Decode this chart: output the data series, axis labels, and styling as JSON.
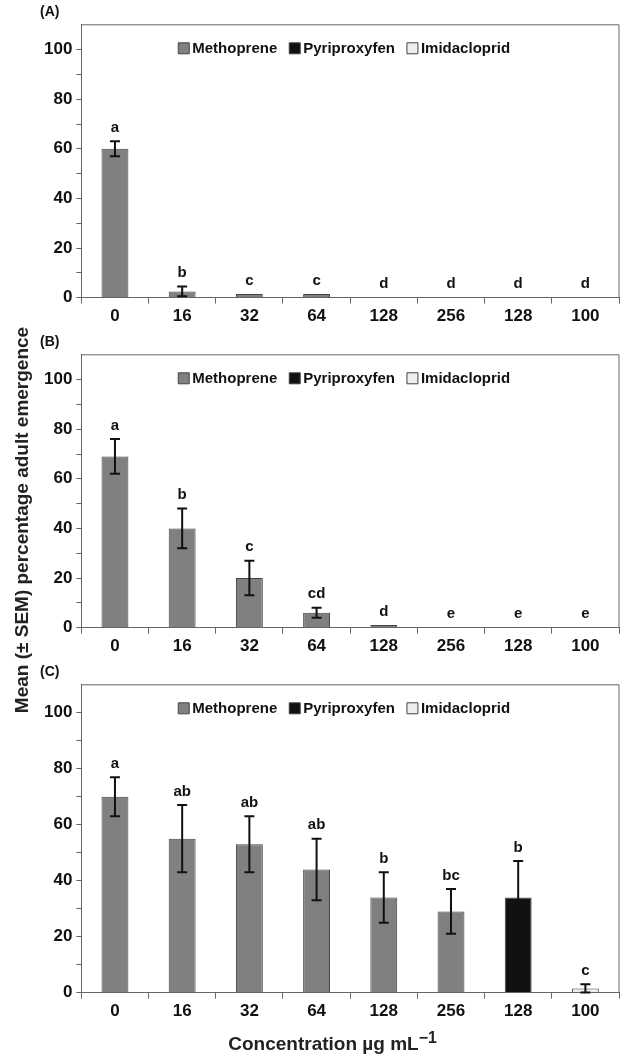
{
  "chart_data": [
    {
      "type": "bar",
      "title": "(A)",
      "categories": [
        "0",
        "16",
        "32",
        "64",
        "128",
        "256",
        "128",
        "100"
      ],
      "series": [
        {
          "name": "Methoprene",
          "color": "#808080",
          "values": [
            60,
            2.5,
            1.5,
            1.5,
            0,
            0,
            null,
            null
          ],
          "errors": [
            3,
            2,
            null,
            null,
            null,
            null,
            null,
            null
          ],
          "value_labels": [
            "a",
            "b",
            "c",
            "c",
            "d",
            "d",
            null,
            null
          ]
        },
        {
          "name": "Pyriproxyfen",
          "color": "#111111",
          "values": [
            null,
            null,
            null,
            null,
            null,
            null,
            0,
            null
          ],
          "value_labels": [
            null,
            null,
            null,
            null,
            null,
            null,
            "d",
            null
          ]
        },
        {
          "name": "Imidacloprid",
          "color": "#eeeeee",
          "values": [
            null,
            null,
            null,
            null,
            null,
            null,
            null,
            0
          ],
          "value_labels": [
            null,
            null,
            null,
            null,
            null,
            null,
            null,
            "d"
          ]
        }
      ],
      "ylim": [
        0,
        110
      ],
      "yticks": [
        0,
        {
          "value": 10,
          "label": null
        },
        20,
        {
          "value": 30,
          "label": null
        },
        40,
        {
          "value": 50,
          "label": null
        },
        60,
        {
          "value": 70,
          "label": null
        },
        80,
        {
          "value": 90,
          "label": null
        },
        100
      ],
      "grid": false,
      "legend": "top"
    },
    {
      "type": "bar",
      "title": "(B)",
      "ylabel": "Mean (± SEM) percentage adult emergence",
      "categories": [
        "0",
        "16",
        "32",
        "64",
        "128",
        "256",
        "128",
        "100"
      ],
      "series": [
        {
          "name": "Methoprene",
          "color": "#808080",
          "values": [
            69,
            40,
            20,
            6,
            1,
            0,
            null,
            null
          ],
          "errors": [
            7,
            8,
            7,
            2,
            null,
            null,
            null,
            null
          ],
          "value_labels": [
            "a",
            "b",
            "c",
            "cd",
            "d",
            "e",
            null,
            null
          ]
        },
        {
          "name": "Pyriproxyfen",
          "color": "#111111",
          "values": [
            null,
            null,
            null,
            null,
            null,
            null,
            0,
            null
          ],
          "value_labels": [
            null,
            null,
            null,
            null,
            null,
            null,
            "e",
            null
          ]
        },
        {
          "name": "Imidacloprid",
          "color": "#eeeeee",
          "values": [
            null,
            null,
            null,
            null,
            null,
            null,
            null,
            0
          ],
          "value_labels": [
            null,
            null,
            null,
            null,
            null,
            null,
            null,
            "e"
          ]
        }
      ],
      "ylim": [
        0,
        110
      ],
      "yticks": [
        0,
        {
          "value": 10,
          "label": null
        },
        20,
        {
          "value": 30,
          "label": null
        },
        40,
        {
          "value": 50,
          "label": null
        },
        60,
        {
          "value": 70,
          "label": null
        },
        80,
        {
          "value": 90,
          "label": null
        },
        100
      ],
      "grid": false,
      "legend": "top"
    },
    {
      "type": "bar",
      "title": "(C)",
      "xlabel": "Concentration µg mL$^{−1}$",
      "categories": [
        "0",
        "16",
        "32",
        "64",
        "128",
        "256",
        "128",
        "100"
      ],
      "series": [
        {
          "name": "Methoprene",
          "color": "#808080",
          "values": [
            70,
            55,
            53,
            44,
            34,
            29,
            null,
            null
          ],
          "errors": [
            7,
            12,
            10,
            11,
            9,
            8,
            null,
            null
          ],
          "value_labels": [
            "a",
            "ab",
            "ab",
            "ab",
            "b",
            "bc",
            null,
            null
          ]
        },
        {
          "name": "Pyriproxyfen",
          "color": "#111111",
          "values": [
            null,
            null,
            null,
            null,
            null,
            null,
            34,
            null
          ],
          "errors": [
            null,
            null,
            null,
            null,
            null,
            null,
            13,
            null
          ],
          "value_labels": [
            null,
            null,
            null,
            null,
            null,
            null,
            "b",
            null
          ]
        },
        {
          "name": "Imidacloprid",
          "color": "#eeeeee",
          "values": [
            null,
            null,
            null,
            null,
            null,
            null,
            null,
            1.5
          ],
          "errors": [
            null,
            null,
            null,
            null,
            null,
            null,
            null,
            1.5
          ],
          "value_labels": [
            null,
            null,
            null,
            null,
            null,
            null,
            null,
            "c"
          ]
        }
      ],
      "ylim": [
        0,
        110
      ],
      "yticks": [
        0,
        {
          "value": 10,
          "label": null
        },
        20,
        {
          "value": 30,
          "label": null
        },
        40,
        {
          "value": 50,
          "label": null
        },
        60,
        {
          "value": 70,
          "label": null
        },
        80,
        {
          "value": 90,
          "label": null
        },
        100
      ],
      "grid": false,
      "legend": "top"
    }
  ]
}
